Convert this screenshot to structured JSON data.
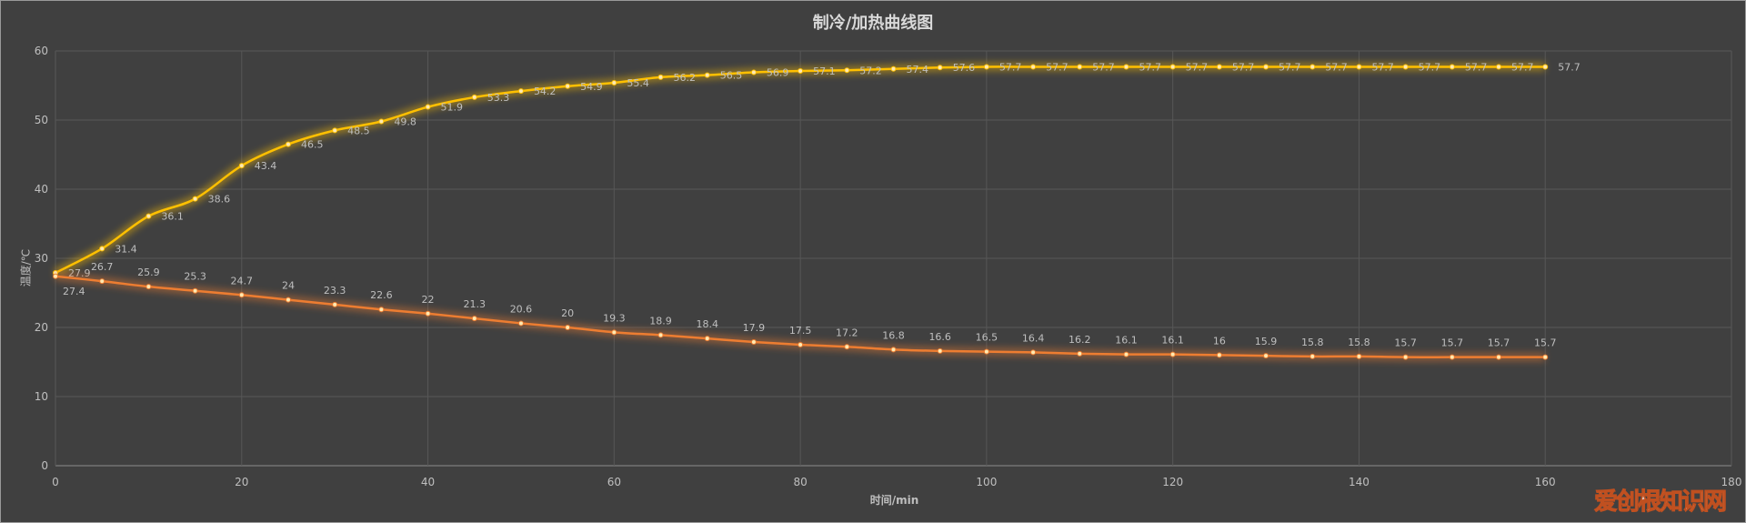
{
  "chart_data": {
    "type": "line",
    "title": "制冷/加热曲线图",
    "xlabel": "时间/min",
    "ylabel": "温度/℃",
    "xlim": [
      0,
      180
    ],
    "ylim": [
      0,
      60
    ],
    "xticks": [
      0,
      20,
      40,
      60,
      80,
      100,
      120,
      140,
      160,
      180
    ],
    "yticks": [
      0,
      10,
      20,
      30,
      40,
      50,
      60
    ],
    "grid": true,
    "smooth": true,
    "x": [
      0,
      5,
      10,
      15,
      20,
      25,
      30,
      35,
      40,
      45,
      50,
      55,
      60,
      65,
      70,
      75,
      80,
      85,
      90,
      95,
      100,
      105,
      110,
      115,
      120,
      125,
      130,
      135,
      140,
      145,
      150,
      155,
      160
    ],
    "series": [
      {
        "color": "#ffc000",
        "label_position": "right",
        "values": [
          27.9,
          31.4,
          36.1,
          38.6,
          43.4,
          46.5,
          48.5,
          49.8,
          51.9,
          53.3,
          54.2,
          54.9,
          55.4,
          56.2,
          56.5,
          56.9,
          57.1,
          57.2,
          57.4,
          57.6,
          57.7,
          57.7,
          57.7,
          57.7,
          57.7,
          57.7,
          57.7,
          57.7,
          57.7,
          57.7,
          57.7,
          57.7,
          57.7
        ]
      },
      {
        "color": "#ed7d31",
        "label_position": "above",
        "values": [
          27.4,
          26.7,
          25.9,
          25.3,
          24.7,
          24,
          23.3,
          22.6,
          22,
          21.3,
          20.6,
          20,
          19.3,
          18.9,
          18.4,
          17.9,
          17.5,
          17.2,
          16.8,
          16.6,
          16.5,
          16.4,
          16.2,
          16.1,
          16.1,
          16,
          15.9,
          15.8,
          15.8,
          15.7,
          15.7,
          15.7,
          15.7
        ]
      }
    ],
    "colors": {
      "background": "#404040",
      "grid": "#575757",
      "text": "#bfbfbf"
    }
  },
  "watermark": "爱创根知识网"
}
